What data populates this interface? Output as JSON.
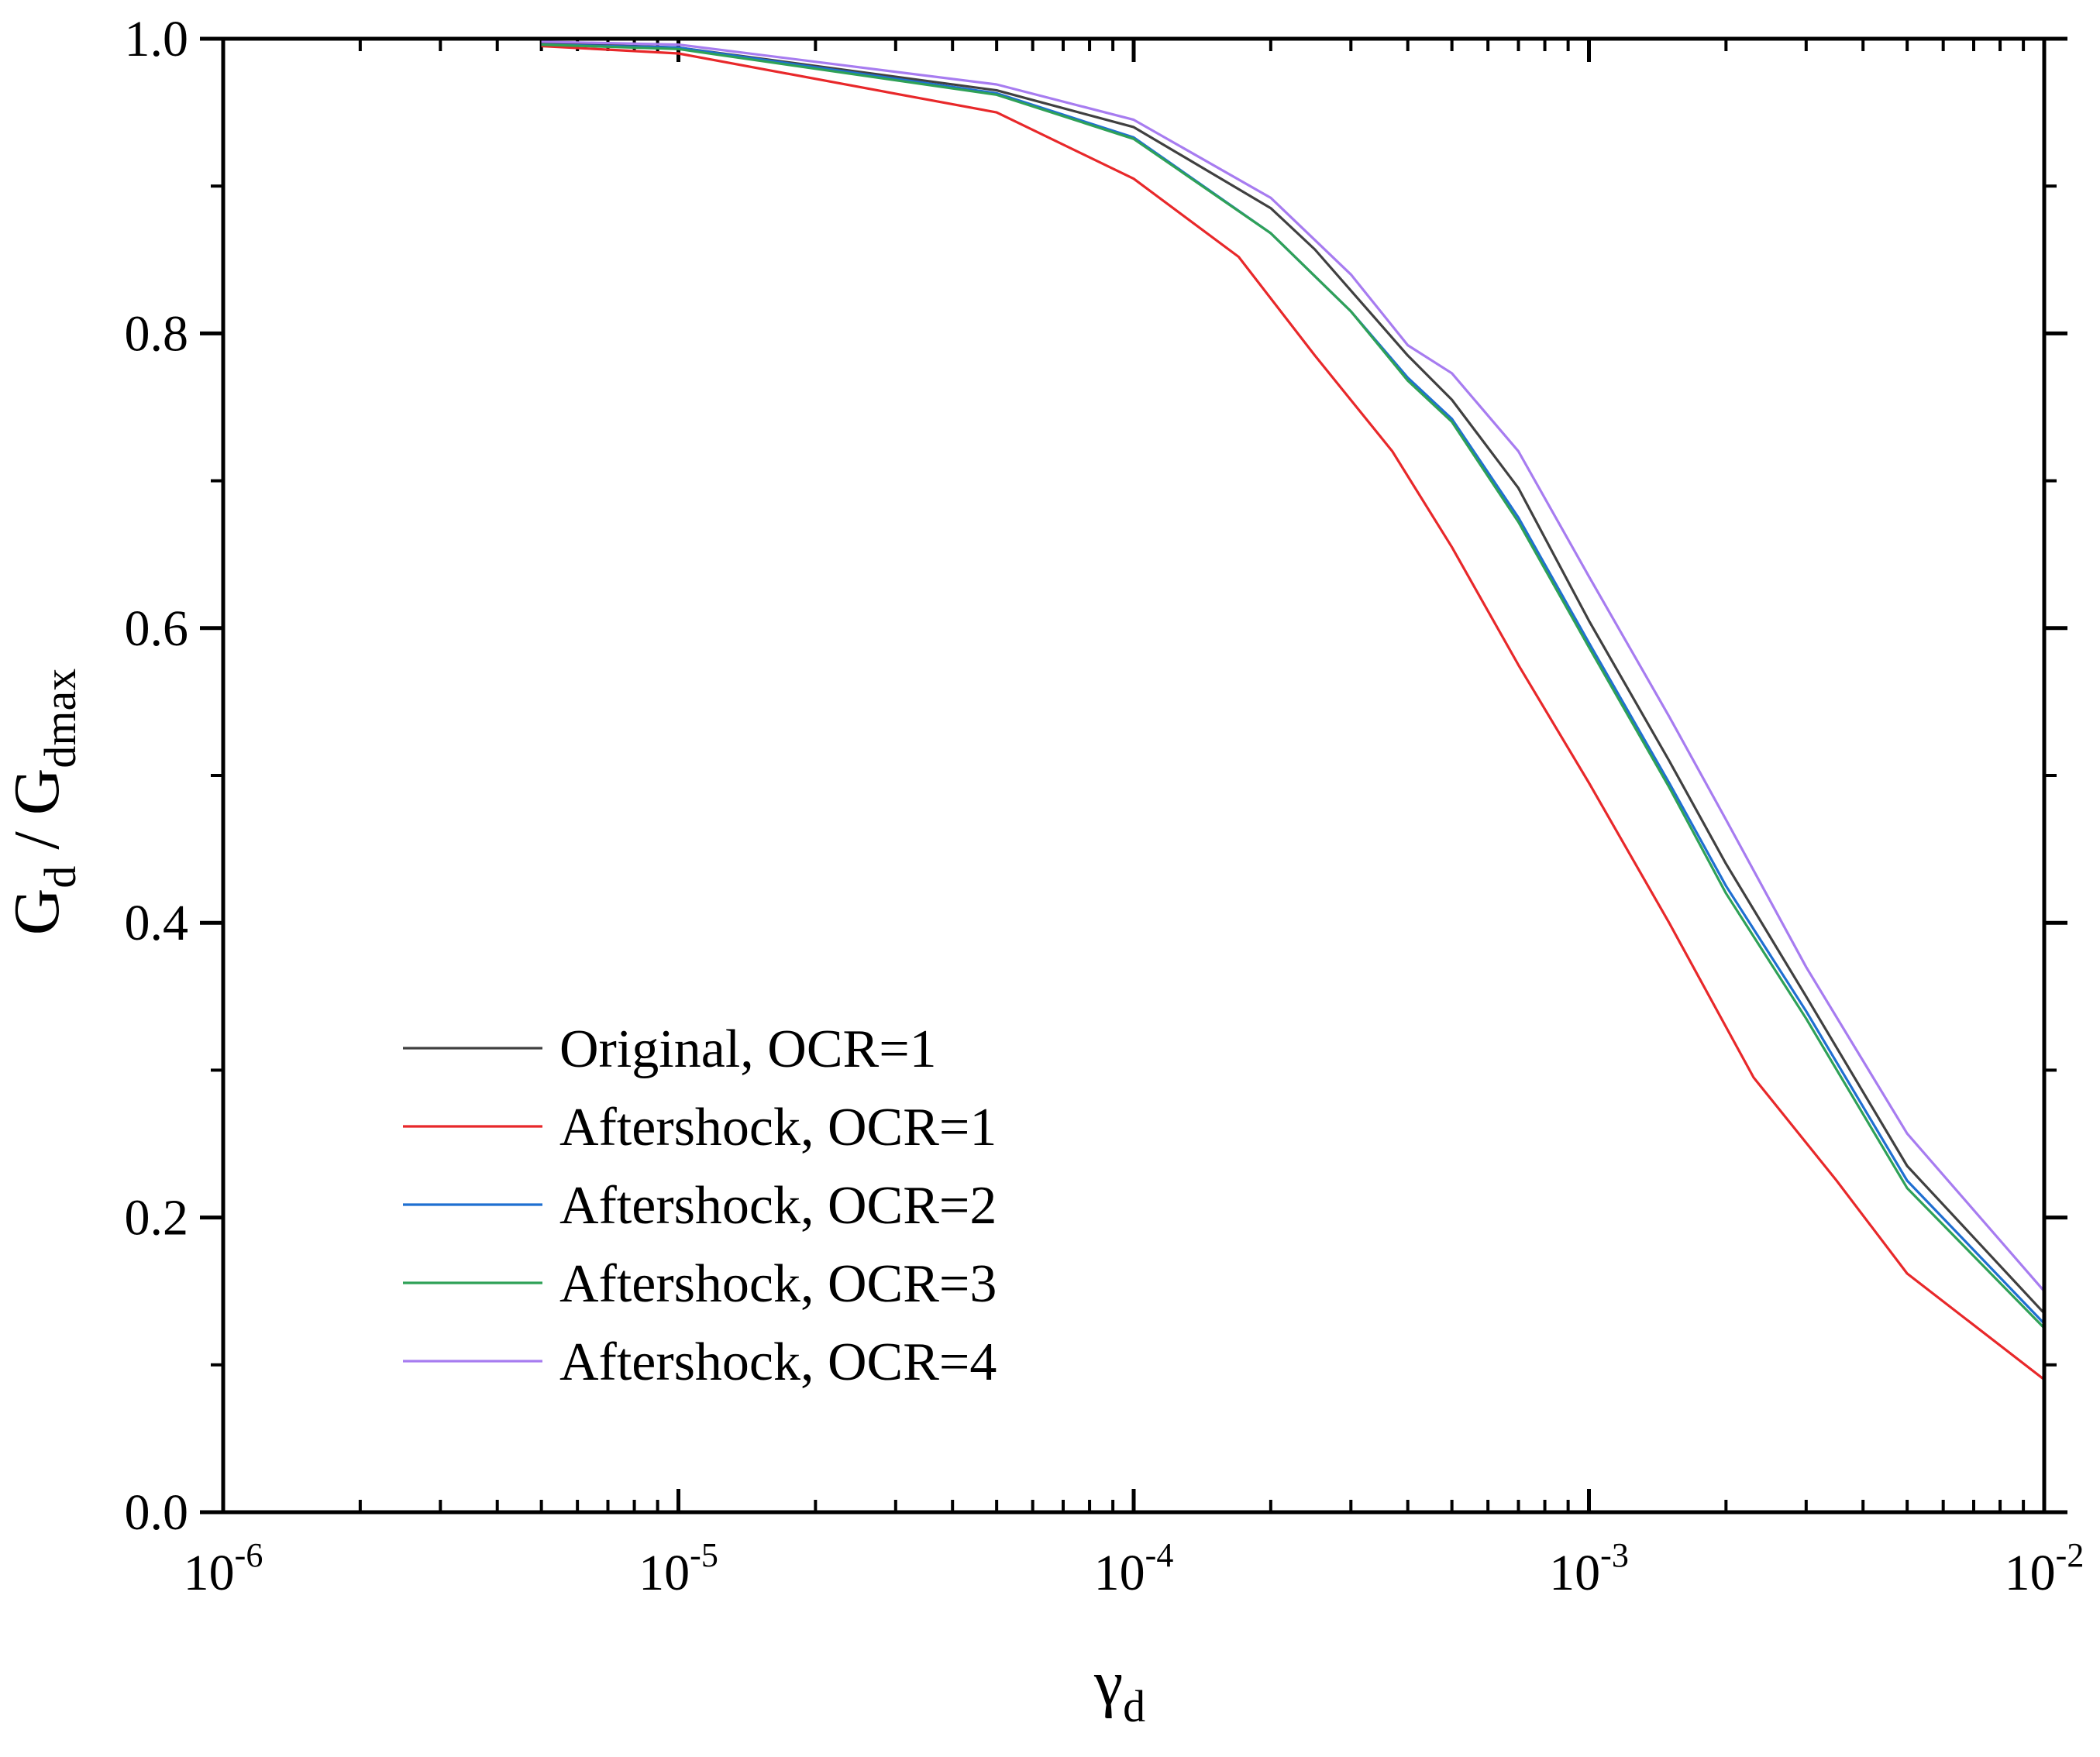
{
  "chart_data": {
    "type": "line",
    "title": "",
    "xscale": "log",
    "xlim": [
      1e-06,
      0.01
    ],
    "ylim": [
      0.0,
      1.0
    ],
    "xlabel": {
      "main": "γ",
      "sub": "d"
    },
    "ylabel": {
      "main1": "G",
      "sub1": "d",
      "middle": " / G",
      "sub2": "dmax"
    },
    "xticks": [
      {
        "value": 1e-06,
        "base": "10",
        "exp": "-6"
      },
      {
        "value": 1e-05,
        "base": "10",
        "exp": "-5"
      },
      {
        "value": 0.0001,
        "base": "10",
        "exp": "-4"
      },
      {
        "value": 0.001,
        "base": "10",
        "exp": "-3"
      },
      {
        "value": 0.01,
        "base": "10",
        "exp": "-2"
      }
    ],
    "yticks": [
      {
        "value": 0.0,
        "label": "0.0"
      },
      {
        "value": 0.2,
        "label": "0.2"
      },
      {
        "value": 0.4,
        "label": "0.4"
      },
      {
        "value": 0.6,
        "label": "0.6"
      },
      {
        "value": 0.8,
        "label": "0.8"
      },
      {
        "value": 1.0,
        "label": "1.0"
      }
    ],
    "yminor": [
      0.1,
      0.3,
      0.5,
      0.7,
      0.9
    ],
    "grid": false,
    "legend_position": "lower-left",
    "series": [
      {
        "name": "Original, OCR=1",
        "color": "#404040",
        "points": [
          [
            5e-06,
            0.997
          ],
          [
            1e-05,
            0.994
          ],
          [
            5e-05,
            0.965
          ],
          [
            0.0001,
            0.94
          ],
          [
            0.0002,
            0.885
          ],
          [
            0.00025,
            0.857
          ],
          [
            0.0004,
            0.785
          ],
          [
            0.0005,
            0.755
          ],
          [
            0.0007,
            0.695
          ],
          [
            0.001,
            0.605
          ],
          [
            0.0015,
            0.51
          ],
          [
            0.002,
            0.44
          ],
          [
            0.003,
            0.35
          ],
          [
            0.005,
            0.235
          ],
          [
            0.01,
            0.135
          ]
        ]
      },
      {
        "name": "Aftershock, OCR=1",
        "color": "#e8282a",
        "points": [
          [
            5e-06,
            0.995
          ],
          [
            1e-05,
            0.99
          ],
          [
            5e-05,
            0.95
          ],
          [
            0.0001,
            0.905
          ],
          [
            0.00017,
            0.852
          ],
          [
            0.00025,
            0.785
          ],
          [
            0.00037,
            0.72
          ],
          [
            0.0005,
            0.655
          ],
          [
            0.0007,
            0.575
          ],
          [
            0.001,
            0.495
          ],
          [
            0.0015,
            0.4
          ],
          [
            0.0023,
            0.295
          ],
          [
            0.0035,
            0.225
          ],
          [
            0.005,
            0.162
          ],
          [
            0.01,
            0.09
          ]
        ]
      },
      {
        "name": "Aftershock, OCR=2",
        "color": "#1f6fd1",
        "points": [
          [
            5e-06,
            0.996
          ],
          [
            1e-05,
            0.994
          ],
          [
            5e-05,
            0.963
          ],
          [
            0.0001,
            0.933
          ],
          [
            0.0002,
            0.868
          ],
          [
            0.0003,
            0.815
          ],
          [
            0.0004,
            0.77
          ],
          [
            0.0005,
            0.742
          ],
          [
            0.0007,
            0.675
          ],
          [
            0.001,
            0.59
          ],
          [
            0.0015,
            0.495
          ],
          [
            0.002,
            0.425
          ],
          [
            0.003,
            0.34
          ],
          [
            0.005,
            0.225
          ],
          [
            0.01,
            0.128
          ]
        ]
      },
      {
        "name": "Aftershock, OCR=3",
        "color": "#2fa157",
        "points": [
          [
            5e-06,
            0.996
          ],
          [
            1e-05,
            0.993
          ],
          [
            5e-05,
            0.962
          ],
          [
            0.0001,
            0.932
          ],
          [
            0.0002,
            0.868
          ],
          [
            0.0003,
            0.815
          ],
          [
            0.0004,
            0.768
          ],
          [
            0.0005,
            0.74
          ],
          [
            0.0007,
            0.672
          ],
          [
            0.001,
            0.587
          ],
          [
            0.0015,
            0.492
          ],
          [
            0.002,
            0.42
          ],
          [
            0.003,
            0.335
          ],
          [
            0.005,
            0.22
          ],
          [
            0.01,
            0.125
          ]
        ]
      },
      {
        "name": "Aftershock, OCR=4",
        "color": "#a77cf0",
        "points": [
          [
            5e-06,
            0.998
          ],
          [
            1e-05,
            0.996
          ],
          [
            5e-05,
            0.969
          ],
          [
            0.0001,
            0.945
          ],
          [
            0.0002,
            0.892
          ],
          [
            0.0003,
            0.84
          ],
          [
            0.0004,
            0.792
          ],
          [
            0.0005,
            0.773
          ],
          [
            0.0007,
            0.72
          ],
          [
            0.001,
            0.635
          ],
          [
            0.0015,
            0.54
          ],
          [
            0.002,
            0.47
          ],
          [
            0.003,
            0.37
          ],
          [
            0.005,
            0.257
          ],
          [
            0.01,
            0.15
          ]
        ]
      }
    ]
  }
}
